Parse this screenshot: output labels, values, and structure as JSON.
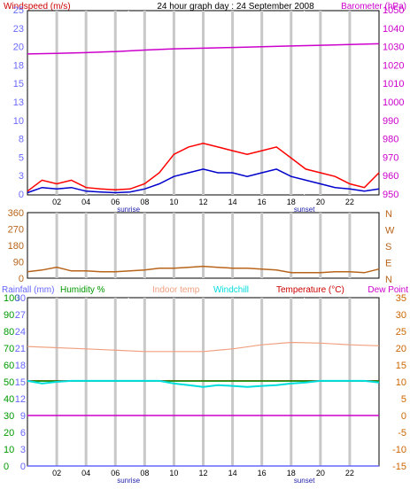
{
  "header": {
    "title": "24 hour graph day : 24 September 2008",
    "left_label": "Windspeed (m/s)",
    "right_label": "Barometer (hPa)"
  },
  "colors": {
    "wind_gust": "#ff0000",
    "wind_avg": "#0000cc",
    "barometer": "#cc00cc",
    "wind_dir": "#b8641a",
    "rainfall": "#6666ff",
    "humidity": "#009900",
    "indoor": "#f0a080",
    "windchill": "#00dddd",
    "temperature": "#cc0000",
    "dewpoint": "#cc00cc",
    "axis_text": "#6a6aff",
    "right_axis_text": "#cc00cc",
    "grid_day": "#c8c8c8"
  },
  "x_axis": {
    "hour_labels": [
      "02",
      "04",
      "06",
      "08",
      "10",
      "12",
      "14",
      "16",
      "18",
      "20",
      "22"
    ],
    "sunrise_label": "sunrise",
    "sunset_label": "sunset",
    "sunrise_hour": 6.9,
    "sunset_hour": 18.9
  },
  "chart_data": [
    {
      "type": "line",
      "name": "wind-barometer",
      "title": "24 hour graph day : 24 September 2008",
      "ylabel": "Windspeed (m/s)",
      "y2label": "Barometer (hPa)",
      "ylim": [
        0,
        25
      ],
      "y2lim": [
        950,
        1050
      ],
      "y_ticks": [
        "0",
        "3",
        "5",
        "8",
        "10",
        "13",
        "15",
        "18",
        "20",
        "23",
        "25"
      ],
      "y2_ticks": [
        "950",
        "960",
        "970",
        "980",
        "990",
        "1000",
        "1010",
        "1020",
        "1030",
        "1040",
        "1050"
      ],
      "series": [
        {
          "key": "barometer",
          "x": [
            0,
            2,
            4,
            6,
            8,
            10,
            12,
            14,
            16,
            18,
            20,
            22,
            24
          ],
          "values": [
            1026.5,
            1026.8,
            1027.2,
            1027.8,
            1028.6,
            1029.3,
            1029.6,
            1030.0,
            1030.4,
            1030.8,
            1031.2,
            1031.6,
            1032.0
          ]
        },
        {
          "key": "wind_gust",
          "x": [
            0,
            1,
            2,
            3,
            4,
            5,
            6,
            7,
            8,
            9,
            10,
            11,
            12,
            13,
            14,
            15,
            16,
            17,
            18,
            19,
            20,
            21,
            22,
            23,
            24
          ],
          "values": [
            0.5,
            2.0,
            1.5,
            2.0,
            1.0,
            0.8,
            0.7,
            0.8,
            1.5,
            3.0,
            5.5,
            6.5,
            7.0,
            6.5,
            6.0,
            5.5,
            6.0,
            6.5,
            5.0,
            3.5,
            3.0,
            2.5,
            1.5,
            1.0,
            3.0
          ]
        },
        {
          "key": "wind_avg",
          "x": [
            0,
            1,
            2,
            3,
            4,
            5,
            6,
            7,
            8,
            9,
            10,
            11,
            12,
            13,
            14,
            15,
            16,
            17,
            18,
            19,
            20,
            21,
            22,
            23,
            24
          ],
          "values": [
            0.3,
            1.0,
            0.8,
            1.0,
            0.5,
            0.4,
            0.3,
            0.4,
            0.8,
            1.5,
            2.5,
            3.0,
            3.5,
            3.0,
            3.0,
            2.5,
            3.0,
            3.5,
            2.5,
            2.0,
            1.5,
            1.0,
            0.8,
            0.5,
            0.8
          ]
        }
      ]
    },
    {
      "type": "line",
      "name": "wind-direction",
      "ylim": [
        0,
        360
      ],
      "y_ticks": [
        "0",
        "90",
        "180",
        "270",
        "360"
      ],
      "compass_labels": [
        "N",
        "W",
        "S",
        "E",
        "N"
      ],
      "series": [
        {
          "key": "wind_dir",
          "x": [
            0,
            1,
            2,
            3,
            4,
            5,
            6,
            7,
            8,
            9,
            10,
            11,
            12,
            13,
            14,
            15,
            16,
            17,
            18,
            19,
            20,
            21,
            22,
            23,
            24
          ],
          "values": [
            35,
            45,
            60,
            40,
            40,
            35,
            35,
            40,
            45,
            55,
            55,
            60,
            65,
            60,
            55,
            55,
            50,
            45,
            30,
            30,
            30,
            35,
            35,
            30,
            50
          ]
        }
      ]
    },
    {
      "type": "line",
      "name": "temperature-humidity",
      "legend": {
        "rainfall": "Rainfall (mm)",
        "humidity": "Humidity %",
        "indoor": "Indoor temp",
        "windchill": "Windchill",
        "temperature": "Temperature (°C)",
        "dewpoint": "Dew Point"
      },
      "left_ticks_humidity": [
        "0",
        "10",
        "20",
        "30",
        "40",
        "50",
        "60",
        "70",
        "80",
        "90",
        "100"
      ],
      "left_ticks_rain": [
        "0",
        "3",
        "6",
        "9",
        "12",
        "15",
        "18",
        "21",
        "24",
        "27",
        "30"
      ],
      "right_ticks": [
        "-15",
        "-10",
        "-5",
        "0",
        "5",
        "10",
        "15",
        "20",
        "25",
        "30",
        "35"
      ],
      "ylim_temp": [
        -15,
        35
      ],
      "series": [
        {
          "key": "indoor",
          "x": [
            0,
            4,
            8,
            12,
            14,
            16,
            18,
            20,
            22,
            24
          ],
          "values": [
            20.5,
            19.8,
            19.0,
            19.0,
            19.8,
            21.0,
            21.7,
            21.5,
            21.0,
            20.7
          ]
        },
        {
          "key": "temperature",
          "x": [
            0,
            24
          ],
          "values": [
            10.3,
            10.3
          ]
        },
        {
          "key": "humidity",
          "x": [
            0,
            24
          ],
          "values": [
            50.5,
            50.5
          ]
        },
        {
          "key": "dewpoint",
          "x": [
            0,
            24
          ],
          "values": [
            0,
            0
          ]
        },
        {
          "key": "rainfall",
          "x": [
            0,
            24
          ],
          "values": [
            0,
            0
          ]
        },
        {
          "key": "windchill",
          "x": [
            0,
            1,
            2,
            3,
            4,
            5,
            6,
            7,
            8,
            9,
            10,
            11,
            12,
            13,
            14,
            15,
            16,
            17,
            18,
            19,
            20,
            21,
            22,
            23,
            24
          ],
          "values": [
            10.3,
            9.5,
            10.0,
            10.3,
            10.3,
            10.3,
            10.3,
            10.3,
            10.3,
            10.3,
            9.5,
            9.0,
            8.5,
            9.0,
            8.8,
            8.5,
            8.8,
            9.0,
            9.5,
            9.8,
            10.3,
            10.3,
            10.3,
            10.3,
            9.8
          ]
        }
      ]
    }
  ]
}
